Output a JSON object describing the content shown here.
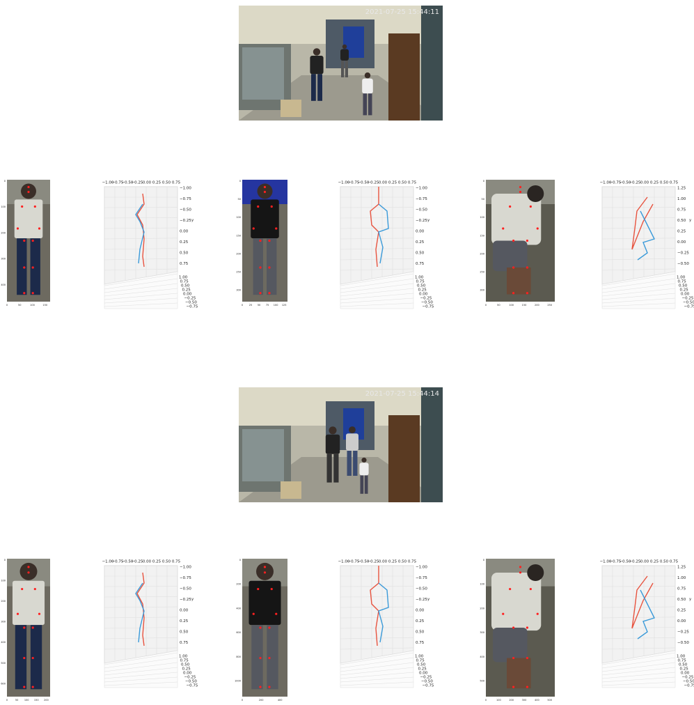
{
  "frames": [
    {
      "timestamp": "2021-07-25 15:44:11",
      "crops": [
        {
          "xticks": [
            "0",
            "50",
            "100",
            "150"
          ],
          "yticks": [
            "0",
            "100",
            "200",
            "300",
            "400"
          ]
        },
        {
          "xticks": [
            "0",
            "25",
            "50",
            "75",
            "100",
            "125"
          ],
          "yticks": [
            "0",
            "50",
            "100",
            "150",
            "200",
            "250",
            "300"
          ]
        },
        {
          "xticks": [
            "0",
            "50",
            "100",
            "150",
            "200",
            "250"
          ],
          "yticks": [
            "0",
            "50",
            "100",
            "150",
            "200",
            "250",
            "300"
          ]
        }
      ],
      "plots": [
        {
          "xticks": [
            "−1.00",
            "−0.75",
            "−0.50",
            "−0.25",
            "0.00",
            "0.25",
            "0.50",
            "0.75"
          ],
          "zticks": [
            "−1.00",
            "−0.75",
            "−0.50",
            "−0.25",
            "0.00",
            "0.25",
            "0.50",
            "0.75"
          ],
          "yticks": [
            "1.00",
            "0.75",
            "0.50",
            "0.25",
            "0.00",
            "−0.25",
            "−0.50",
            "−0.75"
          ],
          "ylabel": "y"
        },
        {
          "xticks": [
            "−1.00",
            "−0.75",
            "−0.50",
            "−0.25",
            "0.00",
            "0.25",
            "0.50",
            "0.75"
          ],
          "zticks": [
            "−1.00",
            "−0.75",
            "−0.50",
            "−0.25",
            "0.00",
            "0.25",
            "0.50",
            "0.75"
          ],
          "yticks": [
            "1.00",
            "0.75",
            "0.50",
            "0.25",
            "0.00",
            "−0.25",
            "−0.50",
            "−0.75"
          ],
          "ylabel": "y"
        },
        {
          "xticks": [
            "−1.00",
            "−0.75",
            "−0.50",
            "−0.25",
            "0.00",
            "0.25",
            "0.50",
            "0.75"
          ],
          "zticks": [
            "1.25",
            "1.00",
            "0.75",
            "0.50",
            "0.25",
            "0.00",
            "−0.25",
            "−0.50"
          ],
          "yticks": [
            "1.00",
            "0.75",
            "0.50",
            "0.25",
            "0.00",
            "−0.25",
            "−0.50",
            "−0.75"
          ],
          "ylabel": "y"
        }
      ]
    },
    {
      "timestamp": "2021-07-25 15:44:14",
      "crops": [
        {
          "xticks": [
            "0",
            "50",
            "100",
            "150",
            "200"
          ],
          "yticks": [
            "0",
            "100",
            "200",
            "300",
            "400",
            "500",
            "600"
          ]
        },
        {
          "xticks": [
            "0",
            "200",
            "400"
          ],
          "yticks": [
            "0",
            "200",
            "400",
            "600",
            "800",
            "1000"
          ]
        },
        {
          "xticks": [
            "0",
            "100",
            "200",
            "300",
            "400",
            "500"
          ],
          "yticks": [
            "0",
            "100",
            "200",
            "300",
            "400",
            "500"
          ]
        }
      ],
      "plots": [
        {
          "xticks": [
            "−1.00",
            "−0.75",
            "−0.50",
            "−0.25",
            "0.00",
            "0.25",
            "0.50",
            "0.75"
          ],
          "zticks": [
            "−1.00",
            "−0.75",
            "−0.50",
            "−0.25",
            "0.00",
            "0.25",
            "0.50",
            "0.75"
          ],
          "yticks": [
            "1.00",
            "0.75",
            "0.50",
            "0.25",
            "0.00",
            "−0.25",
            "−0.50",
            "−0.75"
          ],
          "ylabel": "y"
        },
        {
          "xticks": [
            "−1.00",
            "−0.75",
            "−0.50",
            "−0.25",
            "0.00",
            "0.25",
            "0.50",
            "0.75"
          ],
          "zticks": [
            "−1.00",
            "−0.75",
            "−0.50",
            "−0.25",
            "0.00",
            "0.25",
            "0.50",
            "0.75"
          ],
          "yticks": [
            "1.00",
            "0.75",
            "0.50",
            "0.25",
            "0.00",
            "−0.25",
            "−0.50",
            "−0.75"
          ],
          "ylabel": "y"
        },
        {
          "xticks": [
            "−1.00",
            "−0.75",
            "−0.50",
            "−0.25",
            "0.00",
            "0.25",
            "0.50",
            "0.75"
          ],
          "zticks": [
            "1.25",
            "1.00",
            "0.75",
            "0.50",
            "0.25",
            "0.00",
            "−0.25",
            "−0.50"
          ],
          "yticks": [
            "1.00",
            "0.75",
            "0.50",
            "0.25",
            "0.00",
            "−0.25",
            "−0.50",
            "−0.75"
          ],
          "ylabel": "y"
        }
      ]
    }
  ]
}
